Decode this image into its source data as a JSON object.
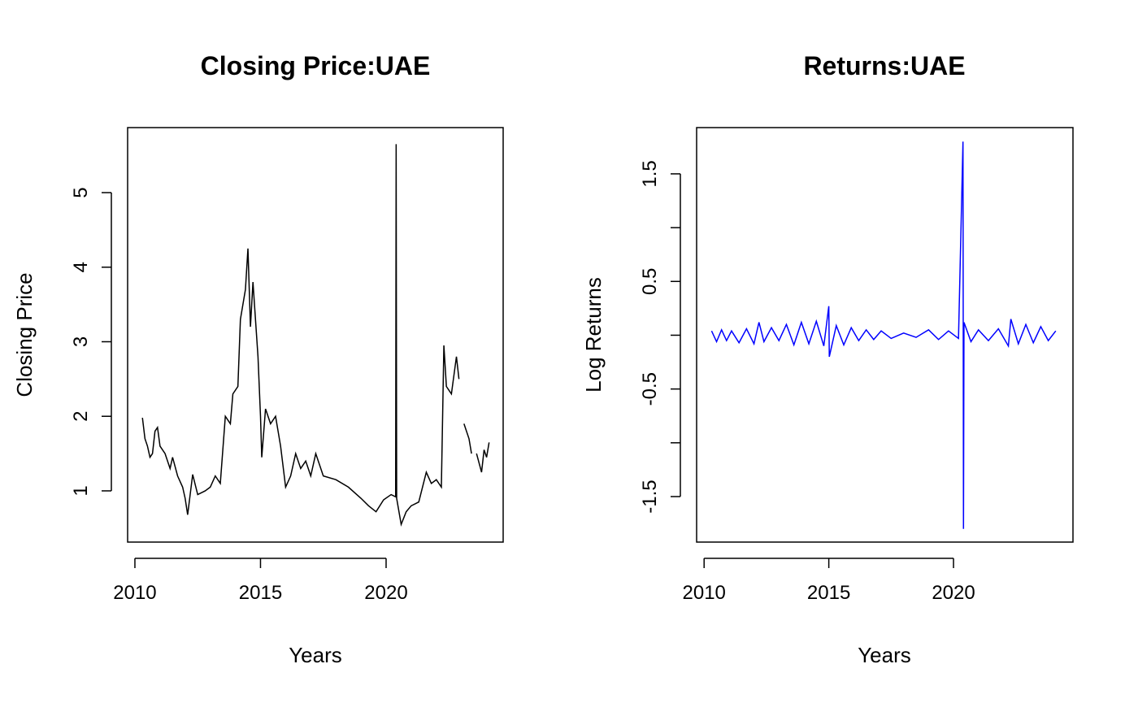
{
  "chart_data": [
    {
      "type": "line",
      "title": "Closing Price:UAE",
      "x_label": "Years",
      "y_label": "Closing Price",
      "xlim": [
        2009.71,
        2024.66
      ],
      "xticks": [
        2010,
        2015,
        2020
      ],
      "ylim": [
        0.313,
        5.872
      ],
      "yticks": [
        1,
        2,
        3,
        4,
        5
      ],
      "series": [
        {
          "color": "#000000",
          "x": [
            2010.3,
            2010.4,
            2010.5,
            2010.6,
            2010.7,
            2010.8,
            2010.9,
            2011.0,
            2011.2,
            2011.4,
            2011.5,
            2011.7,
            2011.9,
            2012.0,
            2012.1,
            2012.3,
            2012.5,
            2012.8,
            2013.0,
            2013.2,
            2013.4,
            2013.6,
            2013.8,
            2013.9,
            2014.1,
            2014.2,
            2014.4,
            2014.5,
            2014.6,
            2014.7,
            2014.9,
            2015.0,
            2015.05,
            2015.2,
            2015.4,
            2015.6,
            2015.8,
            2016.0,
            2016.2,
            2016.4,
            2016.6,
            2016.8,
            2017.0,
            2017.2,
            2017.5,
            2018.0,
            2018.5,
            2019.0,
            2019.3,
            2019.6,
            2019.9,
            2020.2,
            2020.38,
            2020.4,
            2020.42,
            2020.6,
            2020.8,
            2021.0,
            2021.3,
            2021.6,
            2021.8,
            2022.0,
            2022.2,
            2022.3,
            2022.4,
            2022.6,
            2022.8,
            2022.9,
            2023.0,
            2023.1,
            2023.3,
            2023.4,
            2023.5,
            2023.6,
            2023.8,
            2023.9,
            2024.0,
            2024.1
          ],
          "values": [
            1.98,
            1.7,
            1.6,
            1.45,
            1.5,
            1.8,
            1.85,
            1.6,
            1.5,
            1.3,
            1.45,
            1.2,
            1.05,
            0.9,
            0.68,
            1.22,
            0.95,
            1.0,
            1.05,
            1.2,
            1.1,
            2.0,
            1.9,
            2.3,
            2.4,
            3.3,
            3.7,
            4.25,
            3.2,
            3.8,
            2.8,
            2.0,
            1.45,
            2.1,
            1.9,
            2.0,
            1.6,
            1.05,
            1.2,
            1.5,
            1.3,
            1.4,
            1.2,
            1.5,
            1.2,
            1.15,
            1.05,
            0.9,
            0.8,
            0.72,
            0.88,
            0.95,
            0.92,
            5.65,
            0.9,
            0.55,
            0.72,
            0.8,
            0.85,
            1.25,
            1.1,
            1.15,
            1.05,
            2.95,
            2.4,
            2.3,
            2.8,
            2.5,
            null,
            1.9,
            1.7,
            1.5,
            null,
            1.5,
            1.25,
            1.55,
            1.45,
            1.65
          ]
        }
      ]
    },
    {
      "type": "line",
      "title": "Returns:UAE",
      "x_label": "Years",
      "y_label": "Log Returns",
      "xlim": [
        2009.7,
        2024.79
      ],
      "xticks": [
        2010,
        2015,
        2020
      ],
      "ylim": [
        -1.923,
        1.93
      ],
      "yticks": [
        -1.5,
        -0.5,
        0.5,
        1.5
      ],
      "yminorticks": [
        -1,
        0,
        1
      ],
      "series": [
        {
          "color": "#0000ff",
          "x": [
            2010.3,
            2010.5,
            2010.7,
            2010.9,
            2011.1,
            2011.4,
            2011.7,
            2012.0,
            2012.2,
            2012.4,
            2012.7,
            2013.0,
            2013.3,
            2013.6,
            2013.9,
            2014.2,
            2014.5,
            2014.8,
            2015.0,
            2015.02,
            2015.3,
            2015.6,
            2015.9,
            2016.2,
            2016.5,
            2016.8,
            2017.1,
            2017.5,
            2018.0,
            2018.5,
            2019.0,
            2019.4,
            2019.8,
            2020.2,
            2020.38,
            2020.4,
            2020.42,
            2020.7,
            2021.0,
            2021.4,
            2021.8,
            2022.2,
            2022.3,
            2022.6,
            2022.9,
            2023.2,
            2023.5,
            2023.8,
            2024.1
          ],
          "values": [
            0.04,
            -0.06,
            0.05,
            -0.05,
            0.04,
            -0.07,
            0.06,
            -0.08,
            0.12,
            -0.06,
            0.07,
            -0.05,
            0.1,
            -0.09,
            0.12,
            -0.08,
            0.13,
            -0.1,
            0.27,
            -0.2,
            0.09,
            -0.09,
            0.07,
            -0.05,
            0.05,
            -0.04,
            0.04,
            -0.03,
            0.02,
            -0.02,
            0.05,
            -0.04,
            0.04,
            -0.03,
            1.8,
            -1.8,
            0.12,
            -0.06,
            0.05,
            -0.05,
            0.06,
            -0.1,
            0.15,
            -0.08,
            0.1,
            -0.07,
            0.08,
            -0.05,
            0.04
          ]
        }
      ]
    }
  ]
}
